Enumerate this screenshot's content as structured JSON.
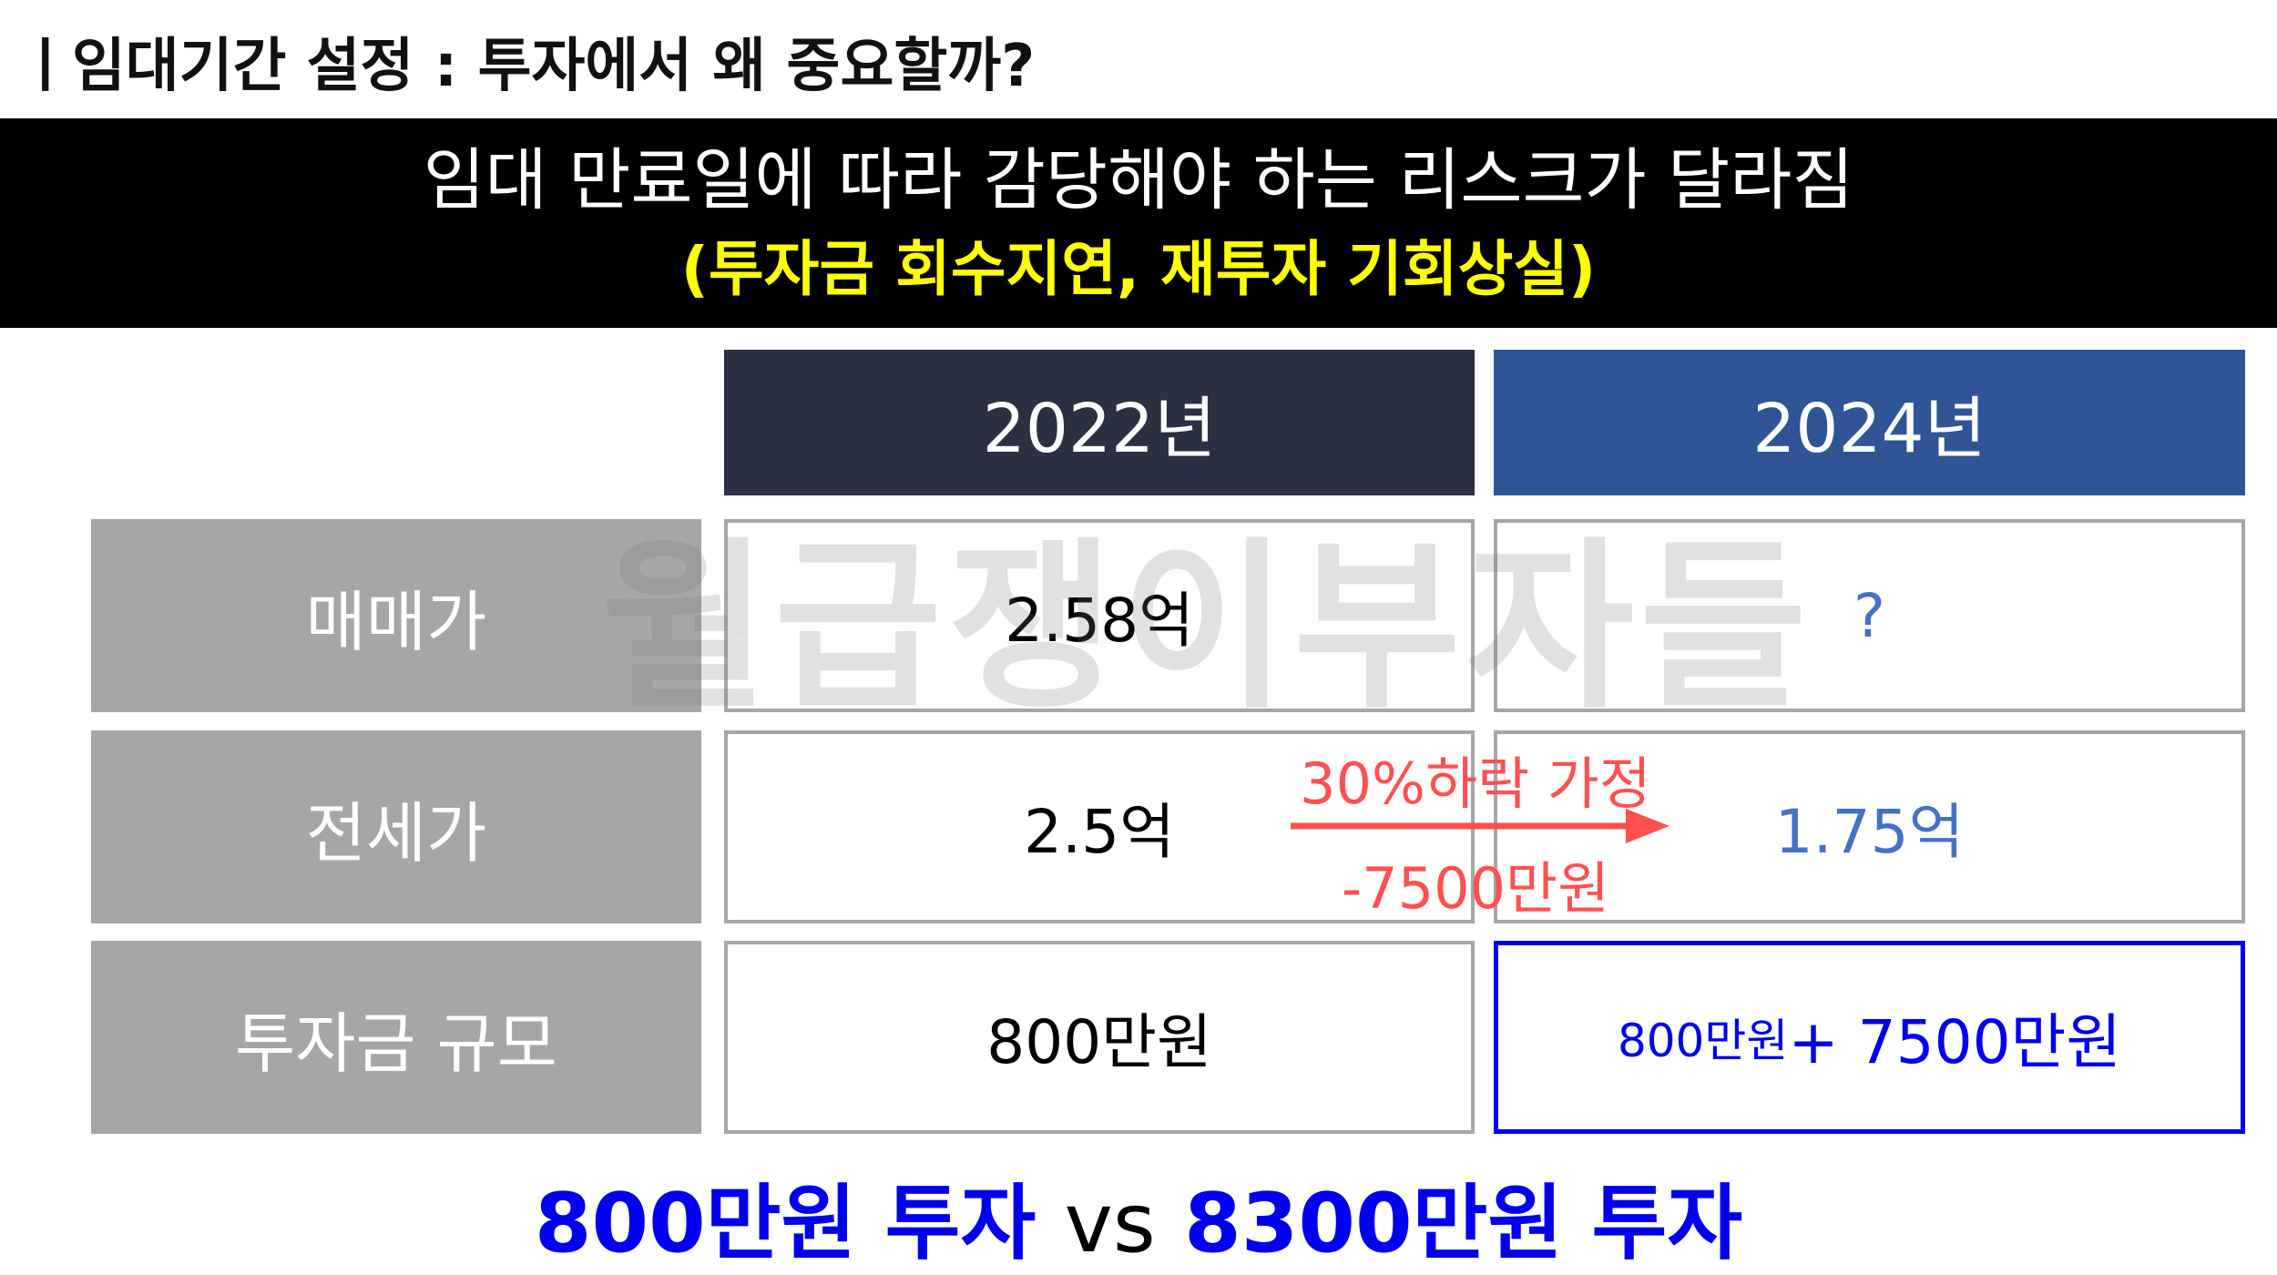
{
  "header": {
    "title": "ㅣ임대기간 설정 : 투자에서 왜 중요할까?"
  },
  "banner": {
    "line1": "임대 만료일에 따라 감당해야 하는 리스크가 달라짐",
    "line2": "(투자금 회수지연, 재투자 기회상실)"
  },
  "table": {
    "columns": [
      "2022년",
      "2024년"
    ],
    "rows": [
      {
        "label": "매매가",
        "values": [
          "2.58억",
          "?"
        ]
      },
      {
        "label": "전세가",
        "values": [
          "2.5억",
          "1.75억"
        ]
      },
      {
        "label": "투자금 규모",
        "values": [
          "800만원",
          ""
        ]
      }
    ],
    "invest_2024_parts": [
      "800만원",
      " + 7500만원"
    ]
  },
  "annotation": {
    "line1": "30%하락 가정",
    "line2": "-7500만원",
    "arrow_color": "#ff5050"
  },
  "watermark": "월급쟁이부자들",
  "summary": {
    "left": "800만원 투자",
    "vs": "vs",
    "right": "8300만원 투자"
  },
  "colors": {
    "col_2022_bg": "#2b3142",
    "col_2024_bg": "#2f5597",
    "label_bg": "#a6a6a6",
    "highlight_blue": "#0000ee",
    "value_blue": "#4472c4",
    "banner_yellow": "#ffff00"
  }
}
